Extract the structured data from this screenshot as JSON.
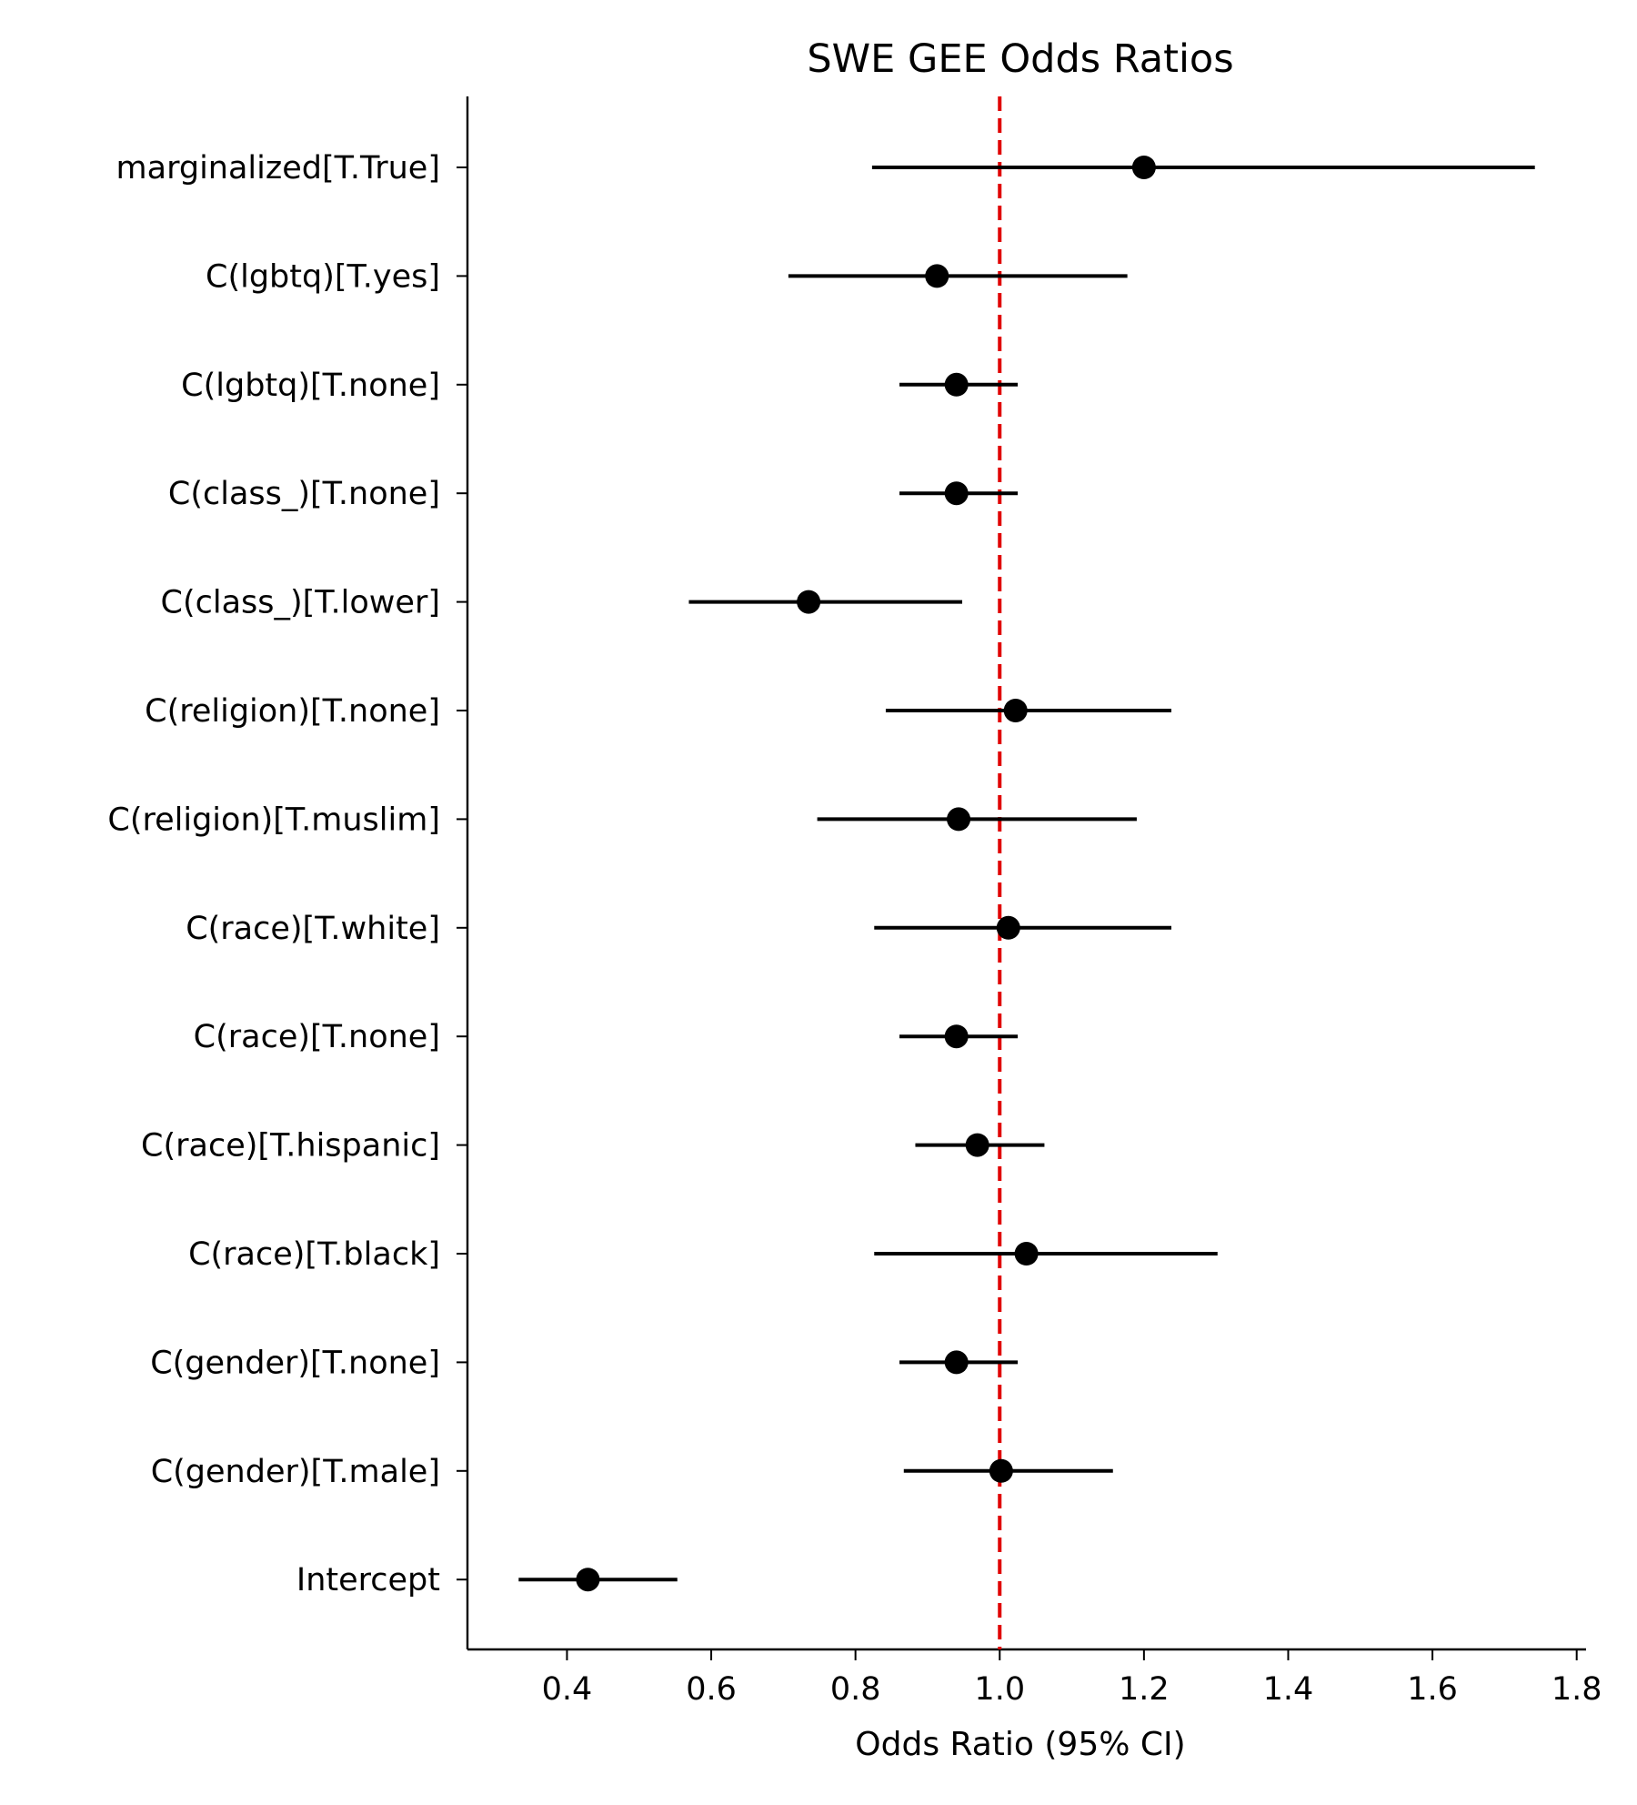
{
  "chart_data": {
    "type": "scatter",
    "title": "SWE GEE Odds Ratios",
    "xlabel": "Odds Ratio (95% CI)",
    "ylabel": "",
    "xlim": [
      0.262,
      1.813
    ],
    "xticks": [
      0.4,
      0.6,
      0.8,
      1.0,
      1.2,
      1.4,
      1.6,
      1.8
    ],
    "xtick_labels": [
      "0.4",
      "0.6",
      "0.8",
      "1.0",
      "1.2",
      "1.4",
      "1.6",
      "1.8"
    ],
    "reference_line": {
      "x": 1.0,
      "color": "#e00000",
      "style": "dashed"
    },
    "marker_color": "#000000",
    "grid": false,
    "legend": "none",
    "series": [
      {
        "points": [
          {
            "label": "marginalized[T.True]",
            "or": 1.2,
            "ci_low": 0.823,
            "ci_high": 1.742
          },
          {
            "label": "C(lgbtq)[T.yes]",
            "or": 0.913,
            "ci_low": 0.707,
            "ci_high": 1.177
          },
          {
            "label": "C(lgbtq)[T.none]",
            "or": 0.94,
            "ci_low": 0.861,
            "ci_high": 1.025
          },
          {
            "label": "C(class_)[T.none]",
            "or": 0.94,
            "ci_low": 0.861,
            "ci_high": 1.025
          },
          {
            "label": "C(class_)[T.lower]",
            "or": 0.735,
            "ci_low": 0.569,
            "ci_high": 0.948
          },
          {
            "label": "C(religion)[T.none]",
            "or": 1.022,
            "ci_low": 0.842,
            "ci_high": 1.238
          },
          {
            "label": "C(religion)[T.muslim]",
            "or": 0.943,
            "ci_low": 0.747,
            "ci_high": 1.19
          },
          {
            "label": "C(race)[T.white]",
            "or": 1.012,
            "ci_low": 0.826,
            "ci_high": 1.238
          },
          {
            "label": "C(race)[T.none]",
            "or": 0.94,
            "ci_low": 0.861,
            "ci_high": 1.025
          },
          {
            "label": "C(race)[T.hispanic]",
            "or": 0.969,
            "ci_low": 0.883,
            "ci_high": 1.062
          },
          {
            "label": "C(race)[T.black]",
            "or": 1.037,
            "ci_low": 0.826,
            "ci_high": 1.302
          },
          {
            "label": "C(gender)[T.none]",
            "or": 0.94,
            "ci_low": 0.861,
            "ci_high": 1.025
          },
          {
            "label": "C(gender)[T.male]",
            "or": 1.002,
            "ci_low": 0.867,
            "ci_high": 1.157
          },
          {
            "label": "Intercept",
            "or": 0.429,
            "ci_low": 0.333,
            "ci_high": 0.553
          }
        ]
      }
    ]
  }
}
